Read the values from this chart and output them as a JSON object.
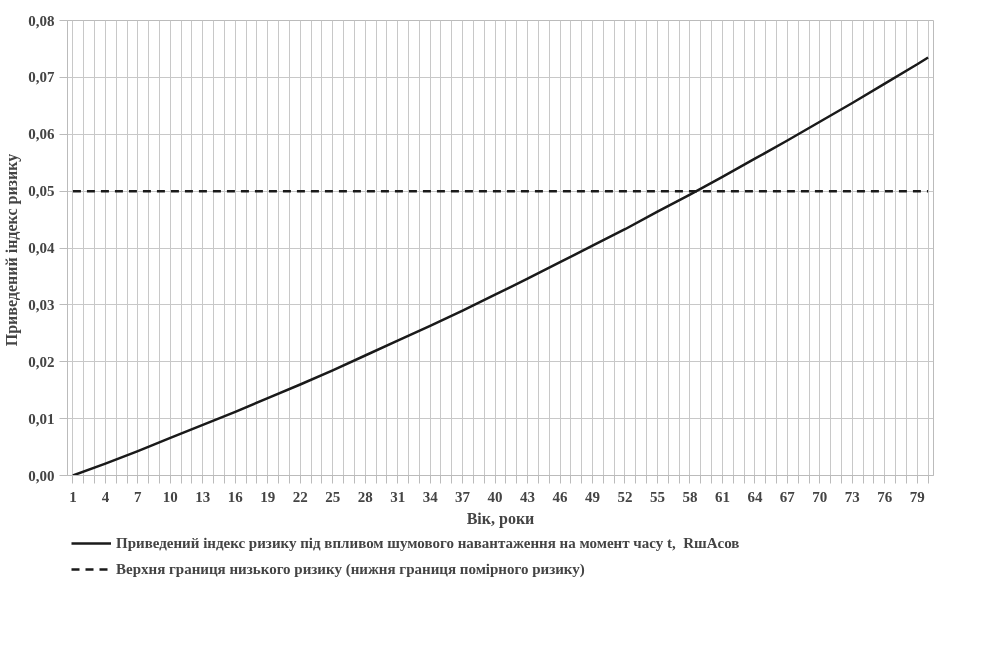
{
  "chart_data": {
    "type": "line",
    "xlabel": "Вік, роки",
    "ylabel": "Приведений  індекс ризику",
    "xlim": [
      0.5,
      80.5
    ],
    "ylim": [
      0,
      0.08
    ],
    "xticks": [
      1,
      {
        "value": 2,
        "label": null
      },
      {
        "value": 3,
        "label": null
      },
      4,
      {
        "value": 5,
        "label": null
      },
      {
        "value": 6,
        "label": null
      },
      7,
      {
        "value": 8,
        "label": null
      },
      {
        "value": 9,
        "label": null
      },
      10,
      {
        "value": 11,
        "label": null
      },
      {
        "value": 12,
        "label": null
      },
      13,
      {
        "value": 14,
        "label": null
      },
      {
        "value": 15,
        "label": null
      },
      16,
      {
        "value": 17,
        "label": null
      },
      {
        "value": 18,
        "label": null
      },
      19,
      {
        "value": 20,
        "label": null
      },
      {
        "value": 21,
        "label": null
      },
      22,
      {
        "value": 23,
        "label": null
      },
      {
        "value": 24,
        "label": null
      },
      25,
      {
        "value": 26,
        "label": null
      },
      {
        "value": 27,
        "label": null
      },
      28,
      {
        "value": 29,
        "label": null
      },
      {
        "value": 30,
        "label": null
      },
      31,
      {
        "value": 32,
        "label": null
      },
      {
        "value": 33,
        "label": null
      },
      34,
      {
        "value": 35,
        "label": null
      },
      {
        "value": 36,
        "label": null
      },
      37,
      {
        "value": 38,
        "label": null
      },
      {
        "value": 39,
        "label": null
      },
      40,
      {
        "value": 41,
        "label": null
      },
      {
        "value": 42,
        "label": null
      },
      43,
      {
        "value": 44,
        "label": null
      },
      {
        "value": 45,
        "label": null
      },
      46,
      {
        "value": 47,
        "label": null
      },
      {
        "value": 48,
        "label": null
      },
      49,
      {
        "value": 50,
        "label": null
      },
      {
        "value": 51,
        "label": null
      },
      52,
      {
        "value": 53,
        "label": null
      },
      {
        "value": 54,
        "label": null
      },
      55,
      {
        "value": 56,
        "label": null
      },
      {
        "value": 57,
        "label": null
      },
      58,
      {
        "value": 59,
        "label": null
      },
      {
        "value": 60,
        "label": null
      },
      61,
      {
        "value": 62,
        "label": null
      },
      {
        "value": 63,
        "label": null
      },
      64,
      {
        "value": 65,
        "label": null
      },
      {
        "value": 66,
        "label": null
      },
      67,
      {
        "value": 68,
        "label": null
      },
      {
        "value": 69,
        "label": null
      },
      70,
      {
        "value": 71,
        "label": null
      },
      {
        "value": 72,
        "label": null
      },
      73,
      {
        "value": 74,
        "label": null
      },
      {
        "value": 75,
        "label": null
      },
      76,
      {
        "value": 77,
        "label": null
      },
      {
        "value": 78,
        "label": null
      },
      79,
      {
        "value": 80,
        "label": null
      }
    ],
    "yticks": [
      {
        "value": 0,
        "label": "0,00"
      },
      {
        "value": 0.01,
        "label": "0,01"
      },
      {
        "value": 0.02,
        "label": "0,02"
      },
      {
        "value": 0.03,
        "label": "0,03"
      },
      {
        "value": 0.04,
        "label": "0,04"
      },
      {
        "value": 0.05,
        "label": "0,05"
      },
      {
        "value": 0.06,
        "label": "0,06"
      },
      {
        "value": 0.07,
        "label": "0,07"
      },
      {
        "value": 0.08,
        "label": "0,08"
      }
    ],
    "grid": true,
    "legend": "bottom",
    "marker": "none",
    "series": [
      {
        "name": "Приведений індекс ризику під впливом шумового навантаження на момент часу t,  RшAсов",
        "color": "#1a1a1a",
        "line_style": "solid",
        "x": [
          1,
          4,
          7,
          10,
          13,
          16,
          19,
          22,
          25,
          28,
          31,
          34,
          37,
          40,
          43,
          46,
          49,
          52,
          55,
          58,
          61,
          64,
          67,
          70,
          73,
          76,
          79,
          80
        ],
        "values": [
          0,
          0.0021,
          0.0043,
          0.0066,
          0.0089,
          0.0112,
          0.0136,
          0.016,
          0.0185,
          0.0211,
          0.0237,
          0.0263,
          0.029,
          0.0318,
          0.0346,
          0.0375,
          0.0404,
          0.0433,
          0.0464,
          0.0494,
          0.0525,
          0.0557,
          0.0589,
          0.0622,
          0.0655,
          0.0689,
          0.0723,
          0.0735
        ]
      },
      {
        "name": "Верхня границя низького ризику (нижня границя помірного ризику)",
        "color": "#1a1a1a",
        "line_style": "dashed",
        "x": [
          1,
          80
        ],
        "values": [
          0.05,
          0.05
        ]
      }
    ]
  }
}
